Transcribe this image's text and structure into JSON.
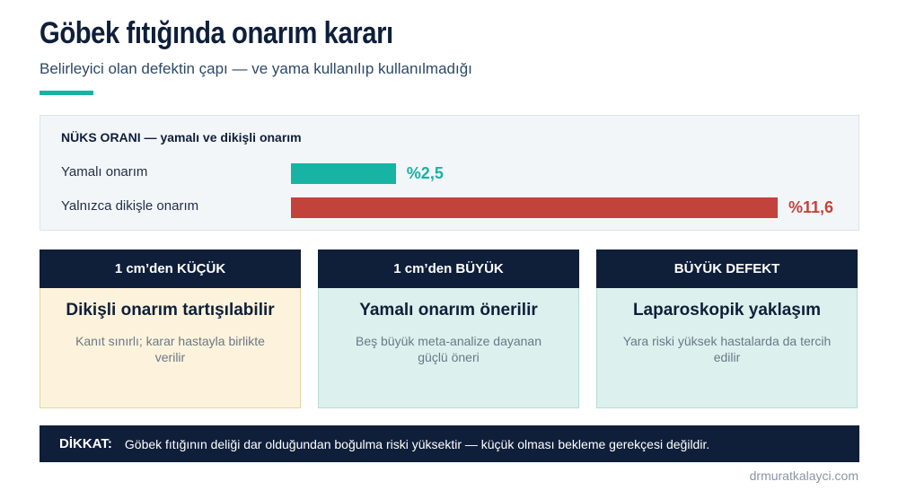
{
  "header": {
    "title": "Göbek fıtığında onarım kararı",
    "subtitle": "Belirleyici olan defektin çapı — ve yama kullanılıp kullanılmadığı"
  },
  "chart_data": {
    "type": "bar",
    "title": "NÜKS ORANI — yamalı ve dikişli onarım",
    "categories": [
      "Yamalı onarım",
      "Yalnızca dikişle onarım"
    ],
    "values": [
      2.5,
      11.6
    ],
    "value_labels": [
      "%2,5",
      "%11,6"
    ],
    "colors": [
      "#17b3a3",
      "#c2433b"
    ]
  },
  "cards": [
    {
      "header": "1 cm’den KÜÇÜK",
      "title": "Dikişli onarım tartışılabilir",
      "text": "Kanıt sınırlı; karar hastayla birlikte verilir",
      "color": "#fdf3dc",
      "border": "#e6d3a6"
    },
    {
      "header": "1 cm’den BÜYÜK",
      "title": "Yamalı onarım önerilir",
      "text": "Beş büyük meta-analize dayanan güçlü öneri",
      "color": "#dcf1ee",
      "border": "#b4dcd6"
    },
    {
      "header": "BÜYÜK DEFEKT",
      "title": "Laparoskopik yaklaşım",
      "text": "Yara riski yüksek hastalarda da tercih edilir",
      "color": "#dcf1ee",
      "border": "#b4dcd6"
    }
  ],
  "warning": {
    "label": "DİKKAT:",
    "text": "Göbek fıtığının deliği dar olduğundan boğulma riski yüksektir — küçük olması bekleme gerekçesi değildir."
  },
  "footer": "drmuratkalayci.com"
}
